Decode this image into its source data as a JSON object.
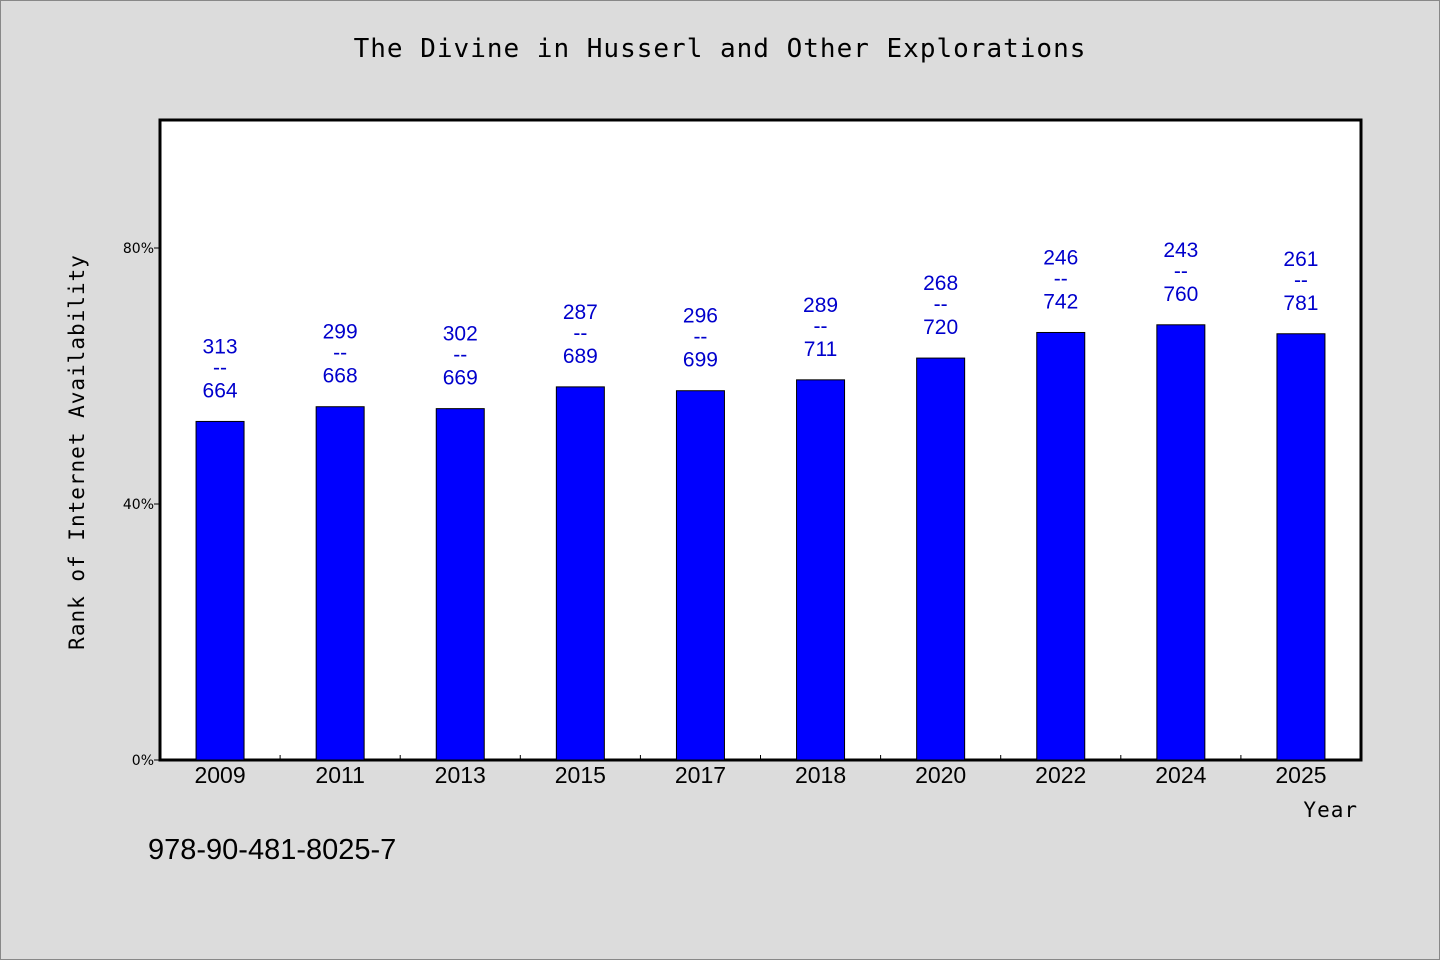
{
  "chart_data": {
    "type": "bar",
    "title": "The Divine in Husserl and Other Explorations",
    "xlabel": "Year",
    "ylabel": "Rank of Internet Availability",
    "ylim": [
      0,
      1
    ],
    "yticks": [
      {
        "value": 0,
        "label": "0%"
      },
      {
        "value": 0.4,
        "label": "40%"
      },
      {
        "value": 0.8,
        "label": "80%"
      }
    ],
    "categories": [
      "2009",
      "2011",
      "2013",
      "2015",
      "2017",
      "2018",
      "2020",
      "2022",
      "2024",
      "2025"
    ],
    "values": [
      0.529,
      0.552,
      0.549,
      0.583,
      0.577,
      0.594,
      0.628,
      0.668,
      0.68,
      0.666
    ],
    "labels": [
      {
        "top": "313",
        "mid": "--",
        "bottom": "664"
      },
      {
        "top": "299",
        "mid": "--",
        "bottom": "668"
      },
      {
        "top": "302",
        "mid": "--",
        "bottom": "669"
      },
      {
        "top": "287",
        "mid": "--",
        "bottom": "689"
      },
      {
        "top": "296",
        "mid": "--",
        "bottom": "699"
      },
      {
        "top": "289",
        "mid": "--",
        "bottom": "711"
      },
      {
        "top": "268",
        "mid": "--",
        "bottom": "720"
      },
      {
        "top": "246",
        "mid": "--",
        "bottom": "742"
      },
      {
        "top": "243",
        "mid": "--",
        "bottom": "760"
      },
      {
        "top": "261",
        "mid": "--",
        "bottom": "781"
      }
    ],
    "bar_color": "#0000ff",
    "label_color": "#0000cc",
    "grid": false
  },
  "footer": {
    "isbn": "978-90-481-8025-7"
  }
}
